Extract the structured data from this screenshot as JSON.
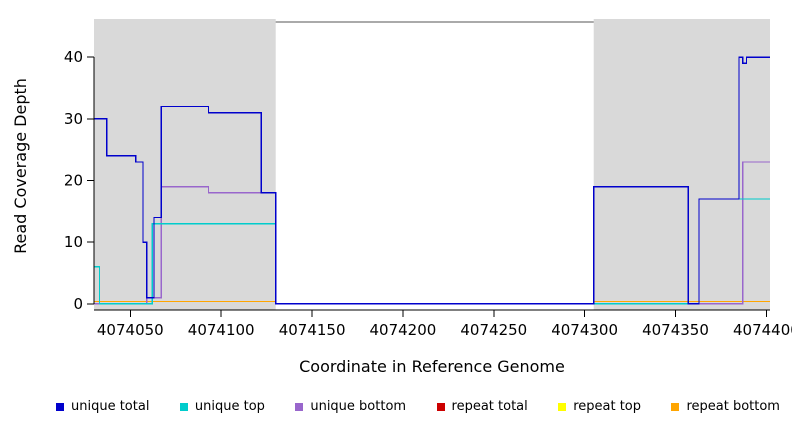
{
  "chart_data": {
    "type": "line",
    "subtype": "step-coverage-plot",
    "title": "",
    "xlabel": "Coordinate in Reference Genome",
    "ylabel": "Read Coverage Depth",
    "xlim": [
      4074030,
      4074402
    ],
    "ylim": [
      -1,
      45.7
    ],
    "x_ticks": [
      4074050,
      4074100,
      4074150,
      4074200,
      4074250,
      4074300,
      4074350,
      4074400
    ],
    "y_ticks": [
      0,
      10,
      20,
      30,
      40
    ],
    "grid": false,
    "legend_position": "bottom",
    "shade_color": "#D9D9D9",
    "shaded_regions": [
      {
        "x0": 4074030,
        "x1": 4074130
      },
      {
        "x0": 4074305,
        "x1": 4074402
      }
    ],
    "series": [
      {
        "name": "repeat total",
        "color": "#CC0000",
        "steps": [
          [
            4074030,
            0.4
          ],
          [
            4074130,
            0
          ],
          [
            4074305,
            0.4
          ]
        ]
      },
      {
        "name": "repeat top",
        "color": "#FFFF00",
        "steps": [
          [
            4074030,
            0.4
          ],
          [
            4074130,
            0
          ],
          [
            4074305,
            0.4
          ]
        ]
      },
      {
        "name": "repeat bottom",
        "color": "#FFA500",
        "steps": [
          [
            4074030,
            0.4
          ],
          [
            4074130,
            0
          ],
          [
            4074305,
            0.4
          ]
        ]
      },
      {
        "name": "unique bottom",
        "color": "#9966CC",
        "steps": [
          [
            4074030,
            0
          ],
          [
            4074059,
            1
          ],
          [
            4074067,
            19
          ],
          [
            4074093,
            18
          ],
          [
            4074130,
            0
          ],
          [
            4074387,
            23
          ]
        ]
      },
      {
        "name": "unique top",
        "color": "#00CCCC",
        "steps": [
          [
            4074030,
            6
          ],
          [
            4074033,
            0
          ],
          [
            4074062,
            13
          ],
          [
            4074130,
            0
          ],
          [
            4074363,
            17
          ]
        ]
      },
      {
        "name": "unique total",
        "color": "#0000CC",
        "steps": [
          [
            4074030,
            30
          ],
          [
            4074037,
            24
          ],
          [
            4074053,
            23
          ],
          [
            4074057,
            10
          ],
          [
            4074059,
            1
          ],
          [
            4074063,
            14
          ],
          [
            4074067,
            32
          ],
          [
            4074093,
            31
          ],
          [
            4074122,
            18
          ],
          [
            4074130,
            0
          ],
          [
            4074305,
            19
          ],
          [
            4074357,
            0
          ],
          [
            4074363,
            17
          ],
          [
            4074385,
            40
          ],
          [
            4074387,
            39
          ],
          [
            4074389,
            40
          ]
        ]
      }
    ],
    "legend": [
      {
        "label": "unique total",
        "color": "#0000CC"
      },
      {
        "label": "unique top",
        "color": "#00CCCC"
      },
      {
        "label": "unique bottom",
        "color": "#9966CC"
      },
      {
        "label": "repeat total",
        "color": "#CC0000"
      },
      {
        "label": "repeat top",
        "color": "#FFFF00"
      },
      {
        "label": "repeat bottom",
        "color": "#FFA500"
      }
    ]
  }
}
